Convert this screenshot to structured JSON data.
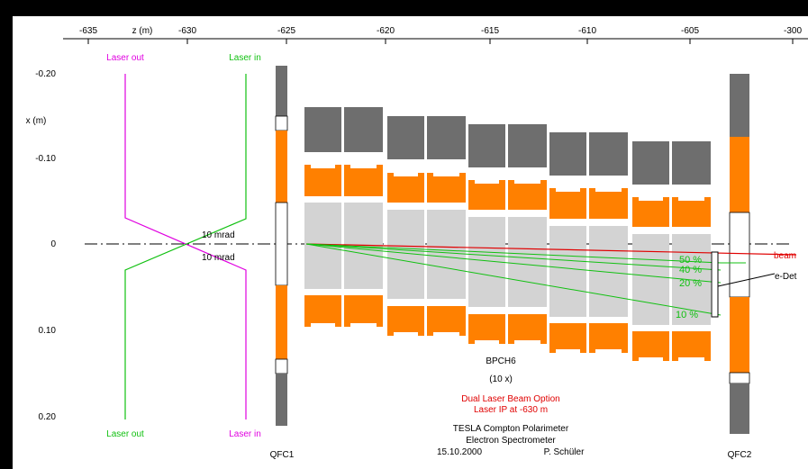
{
  "axes": {
    "z_label": "z (m)",
    "z_ticks": [
      "-635",
      "-630",
      "-625",
      "-620",
      "-615",
      "-610",
      "-605",
      "-300"
    ],
    "x_label": "x (m)",
    "x_ticks": [
      "-0.20",
      "-0.10",
      "0",
      "0.10",
      "0.20"
    ]
  },
  "labels": {
    "laser_out": "Laser out",
    "laser_in": "Laser in",
    "angle_upper": "10 mrad",
    "angle_lower": "10 mrad",
    "qfc1": "QFC1",
    "qfc2": "QFC2",
    "beam": "beam",
    "edet": "e-Det",
    "fractions": [
      "50 %",
      "40 %",
      "20 %",
      "10 %"
    ],
    "dipole": "BPCH6",
    "dipole_count": "(10 x)"
  },
  "caption": {
    "option": "Dual Laser Beam Option",
    "laser_ip": "Laser IP at -630 m",
    "title1": "TESLA Compton Polarimeter",
    "title2": "Electron Spectrometer",
    "date": "15.10.2000",
    "author": "P. Schüler"
  },
  "colors": {
    "yoke": "#6e6e6e",
    "pole": "#ff8000",
    "gap": "#d3d3d3",
    "laser_out": "#e000e0",
    "laser_in": "#10c010",
    "beam": "#e00000"
  }
}
